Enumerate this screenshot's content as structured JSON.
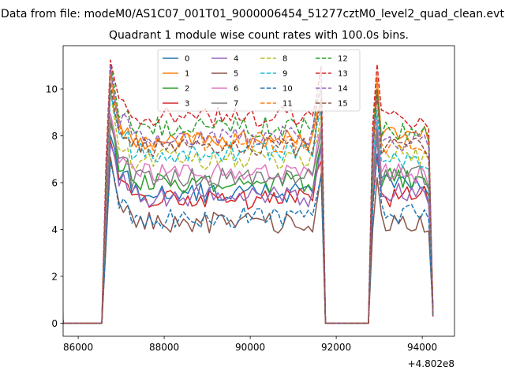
{
  "figure": {
    "suptitle": "Data from file: modeM0/AS1C07_001T01_9000006454_51277cztM0_level2_quad_clean.evt"
  },
  "chart_data": {
    "type": "line",
    "title": "Quadrant 1 module wise count rates with 100.0s bins.",
    "xlabel": "",
    "ylabel": "",
    "x_offset_label": "+4.802e8",
    "xlim": [
      85650,
      94750
    ],
    "ylim": [
      -0.56,
      11.85
    ],
    "xticks": [
      86000,
      88000,
      90000,
      92000,
      94000
    ],
    "xtick_labels": [
      "86000",
      "88000",
      "90000",
      "92000",
      "94000"
    ],
    "yticks": [
      0,
      2,
      4,
      6,
      8,
      10
    ],
    "ytick_labels": [
      "0",
      "2",
      "4",
      "6",
      "8",
      "10"
    ],
    "grid": false,
    "legend_location": "upper center",
    "legend_columns": 4,
    "segments": [
      {
        "start": 85250,
        "end": 85650
      },
      {
        "start": 86650,
        "end": 91650
      },
      {
        "start": 92850,
        "end": 94250
      }
    ],
    "bin_width": 100,
    "series": [
      {
        "name": "0",
        "color": "#1f77b4",
        "dash": "solid",
        "level": 5.6,
        "seg_levels": [
          6.0,
          5.6,
          5.9
        ],
        "seed": 1
      },
      {
        "name": "1",
        "color": "#ff7f0e",
        "dash": "solid",
        "level": 7.8,
        "seg_levels": [
          8.2,
          7.8,
          8.0
        ],
        "seed": 2
      },
      {
        "name": "2",
        "color": "#2ca02c",
        "dash": "solid",
        "level": 6.0,
        "seg_levels": [
          6.3,
          6.0,
          6.2
        ],
        "seed": 3
      },
      {
        "name": "3",
        "color": "#d62728",
        "dash": "solid",
        "level": 5.3,
        "seg_levels": [
          5.8,
          5.3,
          5.4
        ],
        "seed": 4
      },
      {
        "name": "4",
        "color": "#9467bd",
        "dash": "solid",
        "level": 5.4,
        "seg_levels": [
          6.2,
          5.4,
          5.6
        ],
        "seed": 5
      },
      {
        "name": "5",
        "color": "#8c564b",
        "dash": "solid",
        "level": 4.3,
        "seg_levels": [
          4.5,
          4.3,
          4.3
        ],
        "seed": 6
      },
      {
        "name": "6",
        "color": "#e377c2",
        "dash": "solid",
        "level": 6.4,
        "seg_levels": [
          7.0,
          6.4,
          6.4
        ],
        "seed": 7
      },
      {
        "name": "7",
        "color": "#7f7f7f",
        "dash": "solid",
        "level": 6.2,
        "seg_levels": [
          6.6,
          6.2,
          6.3
        ],
        "seed": 8
      },
      {
        "name": "8",
        "color": "#bcbd22",
        "dash": "dashed",
        "level": 7.0,
        "seg_levels": [
          7.5,
          7.0,
          7.2
        ],
        "seed": 9
      },
      {
        "name": "9",
        "color": "#17becf",
        "dash": "dashed",
        "level": 7.3,
        "seg_levels": [
          7.6,
          7.3,
          7.0
        ],
        "seed": 10
      },
      {
        "name": "10",
        "color": "#1f77b4",
        "dash": "dashed",
        "level": 4.5,
        "seg_levels": [
          4.9,
          4.5,
          4.7
        ],
        "seed": 11
      },
      {
        "name": "11",
        "color": "#ff7f0e",
        "dash": "dashed",
        "level": 7.7,
        "seg_levels": [
          7.9,
          7.7,
          7.6
        ],
        "seed": 12
      },
      {
        "name": "12",
        "color": "#2ca02c",
        "dash": "dashed",
        "level": 8.4,
        "seg_levels": [
          8.6,
          8.4,
          8.2
        ],
        "seed": 13
      },
      {
        "name": "13",
        "color": "#d62728",
        "dash": "dashed",
        "level": 8.8,
        "seg_levels": [
          9.2,
          8.8,
          8.8
        ],
        "seed": 14
      },
      {
        "name": "14",
        "color": "#9467bd",
        "dash": "dashed",
        "level": 8.0,
        "seg_levels": [
          8.8,
          8.0,
          7.8
        ],
        "seed": 15
      },
      {
        "name": "15",
        "color": "#8c564b",
        "dash": "dashed",
        "level": 7.5,
        "seg_levels": [
          8.4,
          7.5,
          7.6
        ],
        "seed": 16
      }
    ]
  }
}
